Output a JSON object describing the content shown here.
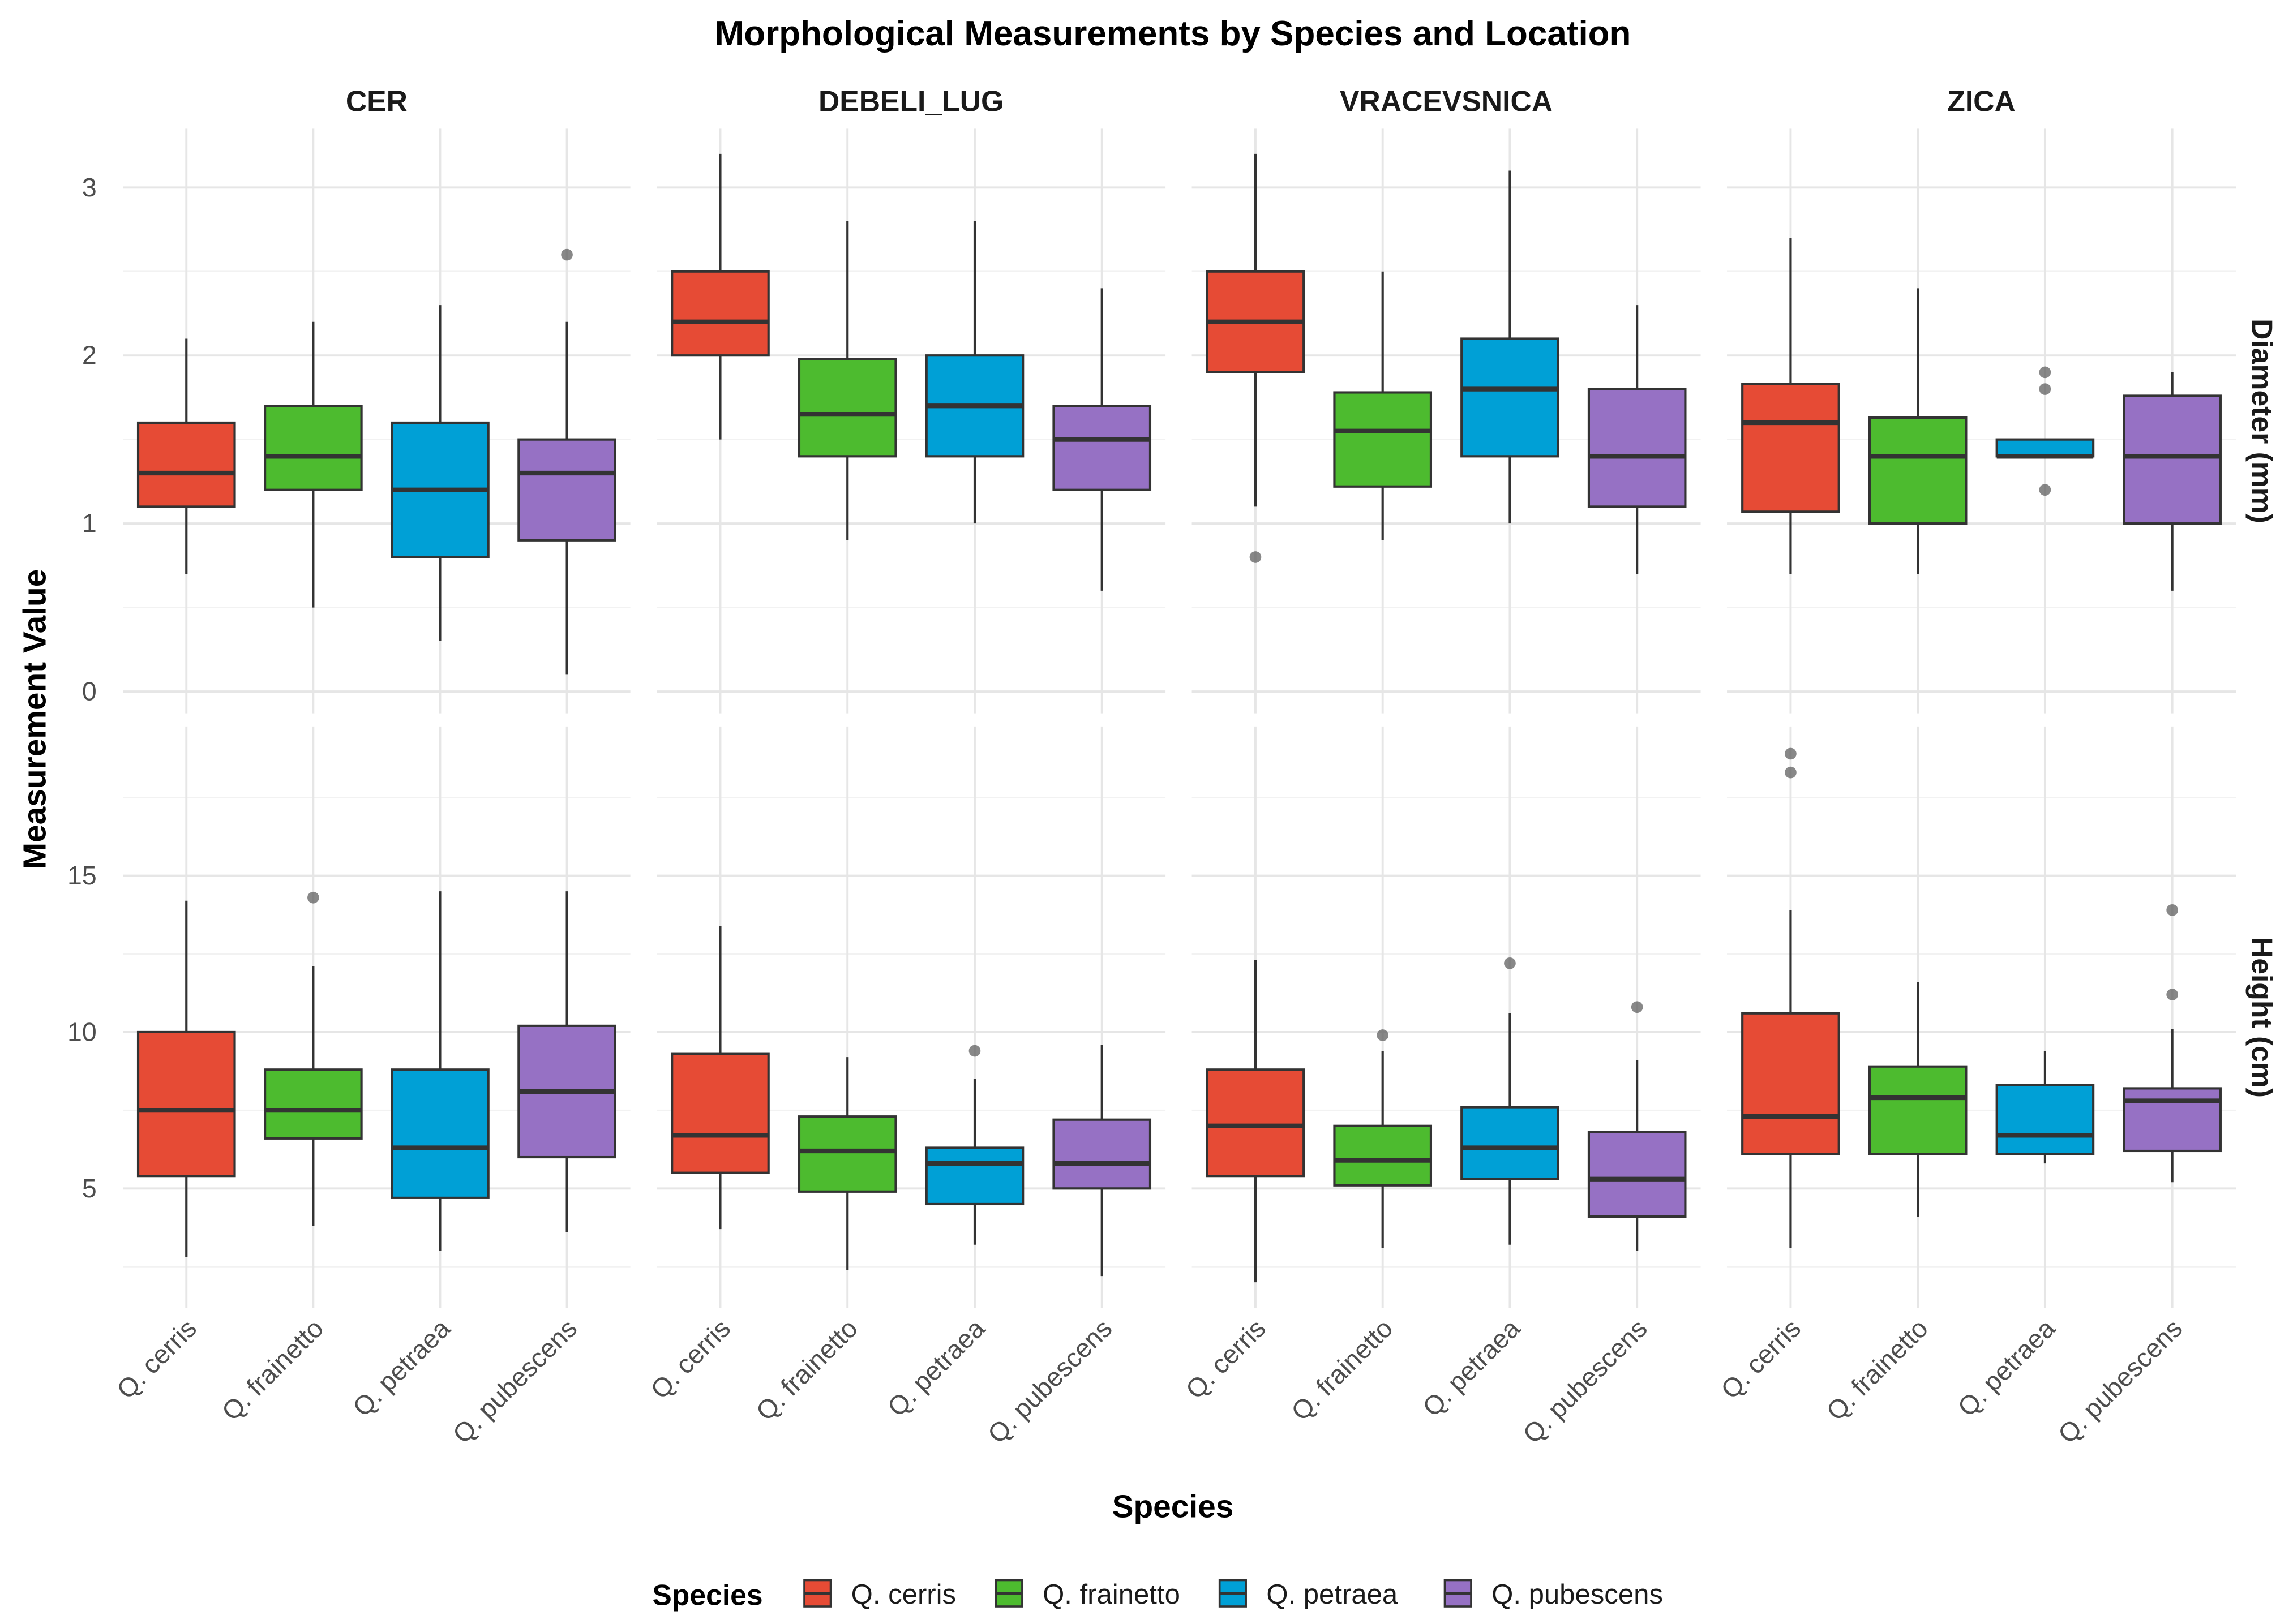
{
  "chart_data": {
    "type": "boxplot",
    "title": "Morphological Measurements by Species and Location",
    "xlabel": "Species",
    "ylabel": "Measurement Value",
    "species": [
      "Q. cerris",
      "Q. frainetto",
      "Q. petraea",
      "Q. pubescens"
    ],
    "colors": [
      "#E64B35",
      "#4DBB2F",
      "#00A0D6",
      "#9671C4"
    ],
    "legend": {
      "title": "Species",
      "position": "bottom",
      "entries": [
        "Q. cerris",
        "Q. frainetto",
        "Q. petraea",
        "Q. pubescens"
      ]
    },
    "columns": [
      "CER",
      "DEBELI_LUG",
      "VRACEVSNICA",
      "ZICA"
    ],
    "rows": [
      {
        "label": "Diameter (mm)",
        "ylim": [
          -0.13,
          3.35
        ],
        "yticks": [
          0,
          1,
          2,
          3
        ],
        "minor": [
          0.5,
          1.5,
          2.5
        ],
        "stats_format": "min,q1,median,q3,max,outliers",
        "data": {
          "CER": [
            [
              0.7,
              1.1,
              1.3,
              1.6,
              2.1,
              []
            ],
            [
              0.5,
              1.2,
              1.4,
              1.7,
              2.2,
              []
            ],
            [
              0.3,
              0.8,
              1.2,
              1.6,
              2.3,
              []
            ],
            [
              0.1,
              0.9,
              1.3,
              1.5,
              2.2,
              [
                2.6
              ]
            ]
          ],
          "DEBELI_LUG": [
            [
              1.5,
              2.0,
              2.2,
              2.5,
              3.2,
              []
            ],
            [
              0.9,
              1.4,
              1.65,
              1.98,
              2.8,
              []
            ],
            [
              1.0,
              1.4,
              1.7,
              2.0,
              2.8,
              []
            ],
            [
              0.6,
              1.2,
              1.5,
              1.7,
              2.4,
              []
            ]
          ],
          "VRACEVSNICA": [
            [
              1.1,
              1.9,
              2.2,
              2.5,
              3.2,
              [
                0.8
              ]
            ],
            [
              0.9,
              1.22,
              1.55,
              1.78,
              2.5,
              []
            ],
            [
              1.0,
              1.4,
              1.8,
              2.1,
              3.1,
              []
            ],
            [
              0.7,
              1.1,
              1.4,
              1.8,
              2.3,
              []
            ]
          ],
          "ZICA": [
            [
              0.7,
              1.07,
              1.6,
              1.83,
              2.7,
              []
            ],
            [
              0.7,
              1.0,
              1.4,
              1.63,
              2.4,
              []
            ],
            [
              1.4,
              1.4,
              1.4,
              1.5,
              1.5,
              [
                1.9,
                1.8,
                1.2
              ]
            ],
            [
              0.6,
              1.0,
              1.4,
              1.76,
              1.9,
              []
            ]
          ]
        }
      },
      {
        "label": "Height (cm)",
        "ylim": [
          1.17,
          19.77
        ],
        "yticks": [
          5,
          10,
          15
        ],
        "minor": [
          2.5,
          7.5,
          12.5,
          17.5
        ],
        "stats_format": "min,q1,median,q3,max,outliers",
        "data": {
          "CER": [
            [
              2.8,
              5.4,
              7.5,
              10.0,
              14.2,
              []
            ],
            [
              3.8,
              6.6,
              7.5,
              8.8,
              12.1,
              [
                14.3
              ]
            ],
            [
              3.0,
              4.7,
              6.3,
              8.8,
              14.5,
              []
            ],
            [
              3.6,
              6.0,
              8.1,
              10.2,
              14.5,
              []
            ]
          ],
          "DEBELI_LUG": [
            [
              3.7,
              5.5,
              6.7,
              9.3,
              13.4,
              []
            ],
            [
              2.4,
              4.9,
              6.2,
              7.3,
              9.2,
              []
            ],
            [
              3.2,
              4.5,
              5.8,
              6.3,
              8.5,
              [
                9.4
              ]
            ],
            [
              2.2,
              5.0,
              5.8,
              7.2,
              9.6,
              []
            ]
          ],
          "VRACEVSNICA": [
            [
              2.0,
              5.4,
              7.0,
              8.8,
              12.3,
              []
            ],
            [
              3.1,
              5.1,
              5.9,
              7.0,
              9.4,
              [
                9.9
              ]
            ],
            [
              3.2,
              5.3,
              6.3,
              7.6,
              10.6,
              [
                12.2
              ]
            ],
            [
              3.0,
              4.1,
              5.3,
              6.8,
              9.1,
              [
                10.8
              ]
            ]
          ],
          "ZICA": [
            [
              3.1,
              6.1,
              7.3,
              10.6,
              13.9,
              [
                18.9,
                18.3
              ]
            ],
            [
              4.1,
              6.1,
              7.9,
              8.9,
              11.6,
              []
            ],
            [
              5.8,
              6.1,
              6.7,
              8.3,
              9.4,
              []
            ],
            [
              5.2,
              6.2,
              7.8,
              8.2,
              10.1,
              [
                13.9,
                11.2
              ]
            ]
          ]
        }
      }
    ]
  }
}
